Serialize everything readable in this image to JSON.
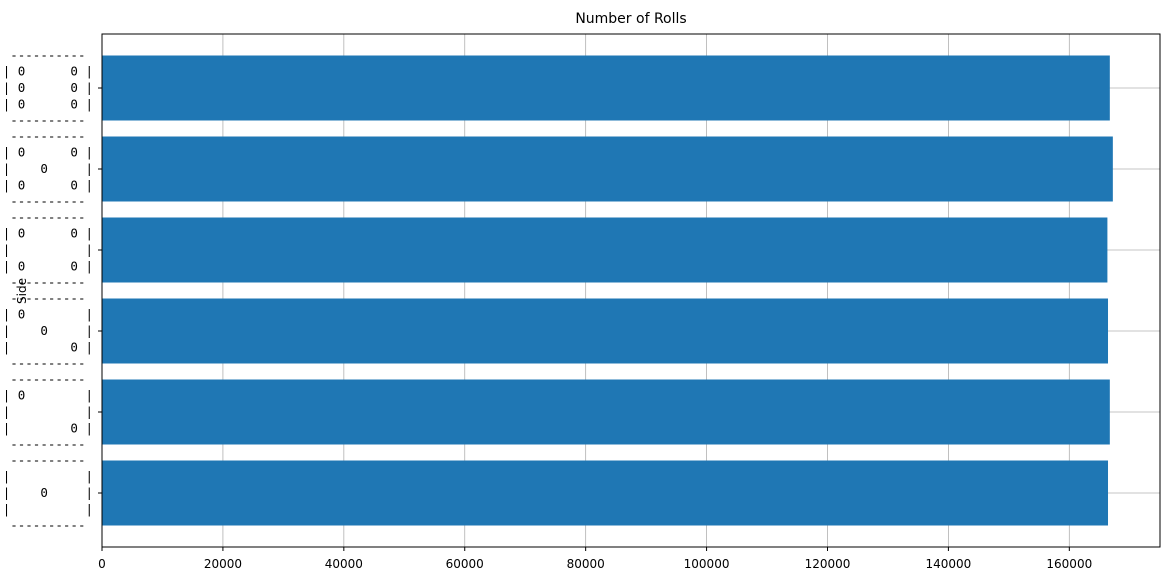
{
  "chart_data": {
    "type": "bar",
    "orientation": "horizontal",
    "title": "Number of Rolls",
    "xlabel": "",
    "ylabel": "Side",
    "xlim": [
      0,
      175000
    ],
    "xticks": [
      0,
      20000,
      40000,
      60000,
      80000,
      100000,
      120000,
      140000,
      160000
    ],
    "grid": true,
    "bar_color": "#1f77b4",
    "categories": [
      [
        " ---------- ",
        "|          |",
        "|    0     |",
        "|          |",
        " ---------- "
      ],
      [
        " ---------- ",
        "| 0        |",
        "|          |",
        "|        0 |",
        " ---------- "
      ],
      [
        " ---------- ",
        "| 0        |",
        "|    0     |",
        "|        0 |",
        " ---------- "
      ],
      [
        " ---------- ",
        "| 0      0 |",
        "|          |",
        "| 0      0 |",
        " ---------- "
      ],
      [
        " ---------- ",
        "| 0      0 |",
        "|    0     |",
        "| 0      0 |",
        " ---------- "
      ],
      [
        " ---------- ",
        "| 0      0 |",
        "| 0      0 |",
        "| 0      0 |",
        " ---------- "
      ]
    ],
    "values": [
      166400,
      166700,
      166400,
      166300,
      167200,
      166700
    ]
  }
}
